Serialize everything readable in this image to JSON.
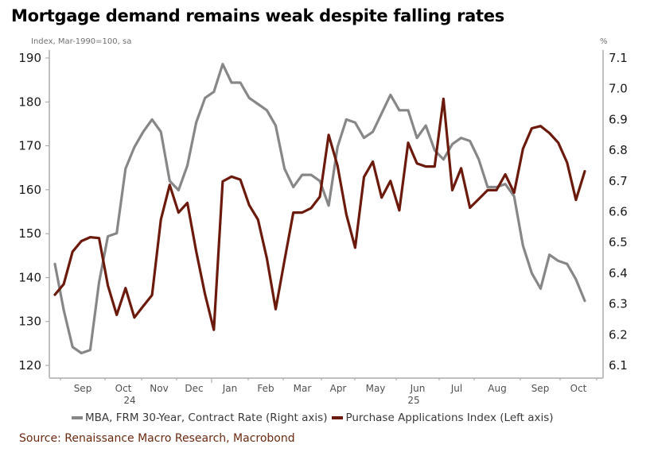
{
  "chart_data": {
    "type": "line",
    "title": "Mortgage demand remains weak despite falling rates",
    "left_axis_label": "Index, Mar-1990=100, sa",
    "right_axis_label": "%",
    "left_axis": {
      "ylim": [
        120,
        190
      ],
      "ticks": [
        120,
        130,
        140,
        150,
        160,
        170,
        180,
        190
      ]
    },
    "right_axis": {
      "ylim": [
        6.1,
        7.1
      ],
      "ticks": [
        "6.1",
        "6.2",
        "6.3",
        "6.4",
        "6.5",
        "6.6",
        "6.7",
        "6.8",
        "6.9",
        "7.0",
        "7.1"
      ]
    },
    "x_tick_labels": [
      "Sep",
      "Oct",
      "Nov",
      "Dec",
      "Jan",
      "Feb",
      "Mar",
      "Apr",
      "May",
      "Jun",
      "Jul",
      "Aug",
      "Sep",
      "Oct"
    ],
    "x_year_labels": [
      {
        "label": "24",
        "under_month_index": 1
      },
      {
        "label": "25",
        "under_month_index": 9
      }
    ],
    "x_range_weeks": [
      0,
      61
    ],
    "grid": false,
    "legend_position": "bottom",
    "series": [
      {
        "name": "MBA, FRM 30-Year, Contract Rate (Right axis)",
        "axis": "right",
        "color": "#878787",
        "values": [
          6.43,
          6.28,
          6.16,
          6.14,
          6.15,
          6.37,
          6.52,
          6.53,
          6.74,
          6.81,
          6.86,
          6.9,
          6.86,
          6.7,
          6.67,
          6.75,
          6.89,
          6.97,
          6.99,
          7.08,
          7.02,
          7.02,
          6.97,
          6.95,
          6.93,
          6.88,
          6.74,
          6.68,
          6.72,
          6.72,
          6.7,
          6.62,
          6.81,
          6.9,
          6.89,
          6.84,
          6.86,
          6.92,
          6.98,
          6.93,
          6.93,
          6.84,
          6.88,
          6.8,
          6.77,
          6.82,
          6.84,
          6.83,
          6.77,
          6.68,
          6.68,
          6.69,
          6.65,
          6.49,
          6.4,
          6.35,
          6.46,
          6.44,
          6.43,
          6.38,
          6.31
        ]
      },
      {
        "name": "Purchase Applications Index (Left axis)",
        "axis": "left",
        "color": "#6b1a0c",
        "values": [
          136.1,
          138.5,
          145.9,
          148.3,
          149.2,
          149.0,
          138.2,
          131.5,
          137.6,
          130.9,
          133.5,
          136.0,
          153.2,
          161.1,
          154.8,
          157.0,
          146.0,
          136.2,
          128.1,
          161.9,
          163.0,
          162.3,
          156.5,
          153.2,
          144.4,
          132.8,
          143.9,
          154.8,
          154.8,
          155.8,
          158.4,
          172.5,
          165.5,
          154.4,
          146.8,
          162.9,
          166.4,
          158.2,
          162.0,
          155.3,
          170.7,
          166.0,
          165.3,
          165.3,
          180.7,
          159.9,
          164.9,
          155.9,
          157.9,
          159.9,
          159.9,
          163.5,
          159.3,
          169.3,
          174.0,
          174.5,
          172.9,
          170.7,
          166.2,
          157.7,
          164.2
        ]
      }
    ]
  },
  "legend": {
    "items": [
      {
        "label": "MBA, FRM 30-Year, Contract Rate (Right axis)",
        "color": "#878787"
      },
      {
        "label": "Purchase Applications Index (Left axis)",
        "color": "#6b1a0c"
      }
    ]
  },
  "source": "Source: Renaissance Macro Research, Macrobond"
}
